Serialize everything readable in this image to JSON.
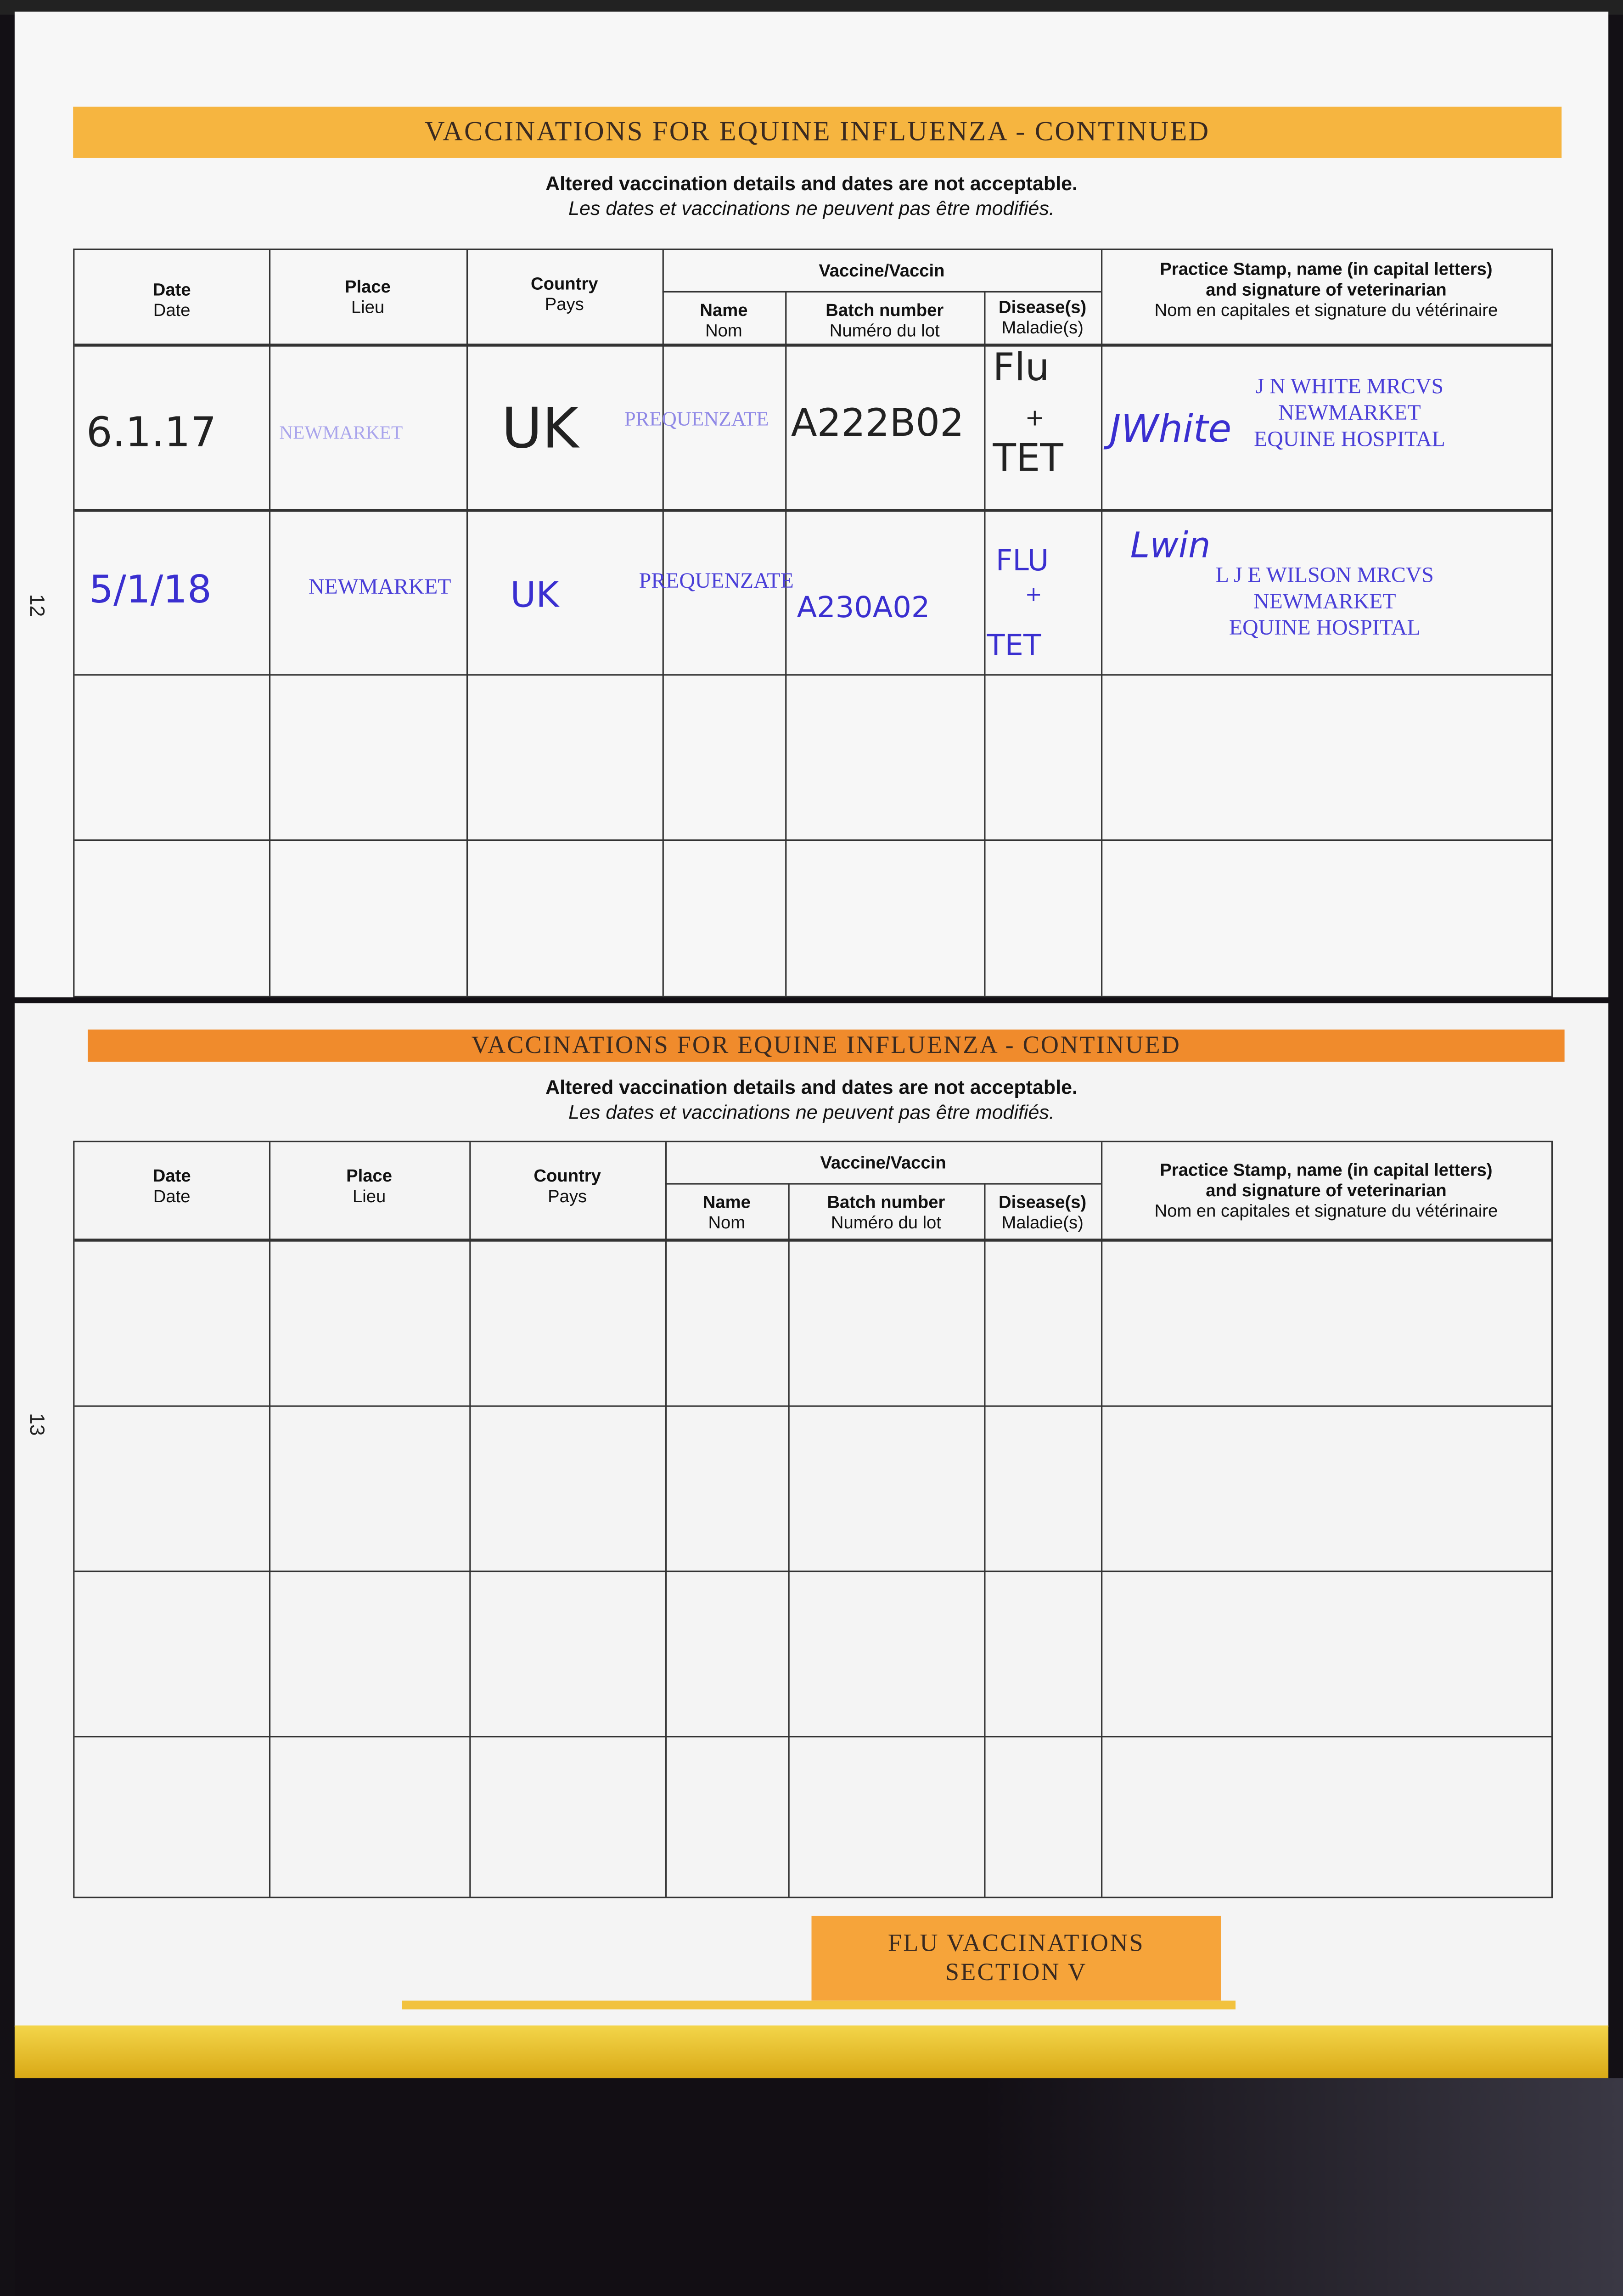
{
  "colors": {
    "banner_top": "#f6b540",
    "banner_bottom": "#f08b2c",
    "stamp_ink": "#4a3fd8",
    "pen_black": "#222222",
    "pen_blue": "#3a2fd0",
    "binding_yellow": "#e7c21f"
  },
  "headers": {
    "date": "Date",
    "date_fr": "Date",
    "place": "Place",
    "place_fr": "Lieu",
    "country": "Country",
    "country_fr": "Pays",
    "vaccine_group": "Vaccine/Vaccin",
    "name": "Name",
    "name_fr": "Nom",
    "batch": "Batch number",
    "batch_fr": "Numéro du lot",
    "disease": "Disease(s)",
    "disease_fr": "Maladie(s)",
    "stamp_line1": "Practice Stamp, name (in capital letters)",
    "stamp_line2": "and signature of veterinarian",
    "stamp_fr": "Nom en capitales et signature du vétérinaire"
  },
  "page12": {
    "page_number": "12",
    "banner": "VACCINATIONS FOR EQUINE INFLUENZA - CONTINUED",
    "notice_en": "Altered vaccination details and dates are not acceptable.",
    "notice_fr": "Les dates et vaccinations ne peuvent pas être modifiés.",
    "rows": [
      {
        "date": "6.1.17",
        "place": "NEWMARKET",
        "country": "UK",
        "name": "PREQUENZATE",
        "batch": "A222B02",
        "disease_1": "Flu",
        "disease_2": "+",
        "disease_3": "TET",
        "signature": "JWhite",
        "stamp": [
          "J N WHITE MRCVS",
          "NEWMARKET",
          "EQUINE HOSPITAL"
        ]
      },
      {
        "date": "5/1/18",
        "place": "NEWMARKET",
        "country": "UK",
        "name": "PREQUENZATE",
        "batch": "A230A02",
        "disease_1": "FLU",
        "disease_2": "+",
        "disease_3": "TET",
        "signature": "Lwin",
        "stamp": [
          "L J E WILSON MRCVS",
          "NEWMARKET",
          "EQUINE HOSPITAL"
        ]
      }
    ]
  },
  "page13": {
    "page_number": "13",
    "banner": "VACCINATIONS FOR EQUINE INFLUENZA - CONTINUED",
    "notice_en": "Altered vaccination details and dates are not acceptable.",
    "notice_fr": "Les dates et vaccinations ne peuvent pas être modifiés."
  },
  "section_tab": {
    "line1": "FLU VACCINATIONS",
    "line2": "SECTION V"
  }
}
